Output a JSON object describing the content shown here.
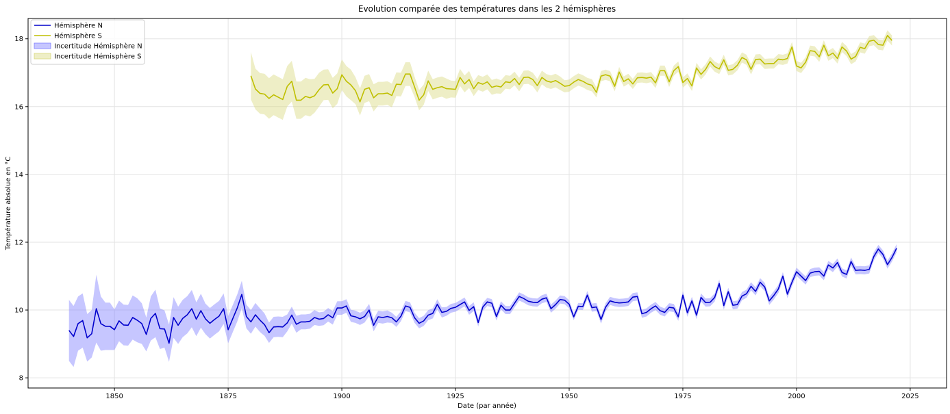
{
  "chart_data": {
    "type": "line",
    "title": "Evolution comparée des températures dans les 2 hémisphères",
    "xlabel": "Date (par année)",
    "ylabel": "Température absolue en °C",
    "xlim": [
      1831,
      2033
    ],
    "ylim": [
      7.7,
      18.6
    ],
    "xticks": [
      1850,
      1875,
      1900,
      1925,
      1950,
      1975,
      2000,
      2025
    ],
    "yticks": [
      8,
      10,
      12,
      14,
      16,
      18
    ],
    "grid": true,
    "legend_position": "top-left",
    "colors": {
      "north": "#0000cc",
      "north_band": "#8080ff",
      "south": "#bfbf00",
      "south_band": "#dada80"
    },
    "legend": [
      {
        "label": "Hémisphère N",
        "kind": "line",
        "series": "north"
      },
      {
        "label": "Hémisphère S",
        "kind": "line",
        "series": "south"
      },
      {
        "label": "Incertitude Hémisphère N",
        "kind": "band",
        "series": "north"
      },
      {
        "label": "Incertitude Hémisphère S",
        "kind": "band",
        "series": "south"
      }
    ],
    "series": [
      {
        "name": "Hémisphère N",
        "key": "north",
        "start_year": 1840,
        "values": [
          9.4,
          9.22,
          9.6,
          9.69,
          9.18,
          9.3,
          10.04,
          9.6,
          9.52,
          9.52,
          9.42,
          9.68,
          9.56,
          9.55,
          9.78,
          9.7,
          9.6,
          9.28,
          9.75,
          9.9,
          9.45,
          9.44,
          9.02,
          9.78,
          9.55,
          9.75,
          9.86,
          10.04,
          9.73,
          9.98,
          9.74,
          9.61,
          9.72,
          9.82,
          10.04,
          9.42,
          9.74,
          10.06,
          10.46,
          9.81,
          9.65,
          9.86,
          9.7,
          9.57,
          9.33,
          9.5,
          9.51,
          9.5,
          9.62,
          9.85,
          9.58,
          9.65,
          9.65,
          9.67,
          9.78,
          9.73,
          9.75,
          9.86,
          9.77,
          10.06,
          10.06,
          10.12,
          9.83,
          9.8,
          9.74,
          9.81,
          10.0,
          9.55,
          9.8,
          9.78,
          9.81,
          9.77,
          9.65,
          9.82,
          10.12,
          10.08,
          9.77,
          9.61,
          9.68,
          9.85,
          9.9,
          10.17,
          9.93,
          9.96,
          10.05,
          10.08,
          10.16,
          10.24,
          9.99,
          10.1,
          9.63,
          10.09,
          10.24,
          10.2,
          9.81,
          10.14,
          10.0,
          10.0,
          10.2,
          10.4,
          10.34,
          10.26,
          10.23,
          10.22,
          10.32,
          10.36,
          10.04,
          10.16,
          10.31,
          10.29,
          10.17,
          9.8,
          10.11,
          10.1,
          10.44,
          10.07,
          10.09,
          9.72,
          10.08,
          10.27,
          10.23,
          10.21,
          10.22,
          10.24,
          10.38,
          10.4,
          9.89,
          9.93,
          10.04,
          10.12,
          9.98,
          9.93,
          10.08,
          10.06,
          9.8,
          10.44,
          9.92,
          10.27,
          9.85,
          10.37,
          10.22,
          10.23,
          10.37,
          10.78,
          10.13,
          10.54,
          10.14,
          10.16,
          10.41,
          10.48,
          10.7,
          10.55,
          10.82,
          10.68,
          10.27,
          10.43,
          10.62,
          11.0,
          10.47,
          10.82,
          11.13,
          11.0,
          10.87,
          11.09,
          11.13,
          11.14,
          11.0,
          11.33,
          11.24,
          11.4,
          11.11,
          11.05,
          11.43,
          11.17,
          11.18,
          11.17,
          11.2,
          11.58,
          11.8,
          11.64,
          11.34,
          11.55,
          11.82
        ]
      },
      {
        "name": "Incertitude Hémisphère N",
        "key": "north_band",
        "start_year": 1840,
        "margins": [
          0.9,
          0.9,
          0.8,
          0.8,
          0.7,
          0.7,
          1.0,
          0.8,
          0.7,
          0.7,
          0.6,
          0.6,
          0.6,
          0.6,
          0.65,
          0.65,
          0.6,
          0.5,
          0.65,
          0.7,
          0.6,
          0.55,
          0.55,
          0.6,
          0.55,
          0.55,
          0.55,
          0.55,
          0.5,
          0.5,
          0.45,
          0.45,
          0.45,
          0.45,
          0.45,
          0.4,
          0.4,
          0.4,
          0.4,
          0.35,
          0.35,
          0.35,
          0.35,
          0.33,
          0.3,
          0.3,
          0.3,
          0.3,
          0.25,
          0.25,
          0.25,
          0.22,
          0.22,
          0.22,
          0.22,
          0.2,
          0.2,
          0.2,
          0.2,
          0.2,
          0.2,
          0.2,
          0.18,
          0.18,
          0.18,
          0.18,
          0.18,
          0.18,
          0.18,
          0.18,
          0.18,
          0.15,
          0.15,
          0.15,
          0.15,
          0.15,
          0.15,
          0.15,
          0.15,
          0.15,
          0.15,
          0.15,
          0.15,
          0.13,
          0.13,
          0.13,
          0.13,
          0.13,
          0.13,
          0.13,
          0.12,
          0.12,
          0.12,
          0.12,
          0.12,
          0.12,
          0.12,
          0.12,
          0.12,
          0.12,
          0.12,
          0.12,
          0.12,
          0.12,
          0.12,
          0.12,
          0.12,
          0.12,
          0.12,
          0.12,
          0.12,
          0.1,
          0.1,
          0.1,
          0.12,
          0.12,
          0.12,
          0.12,
          0.12,
          0.12,
          0.12,
          0.12,
          0.12,
          0.12,
          0.12,
          0.12,
          0.12,
          0.12,
          0.12,
          0.12,
          0.12,
          0.12,
          0.12,
          0.12,
          0.12,
          0.12,
          0.12,
          0.12,
          0.12,
          0.12,
          0.12,
          0.12,
          0.12,
          0.12,
          0.12,
          0.12,
          0.12,
          0.12,
          0.12,
          0.12,
          0.12,
          0.12,
          0.12,
          0.12,
          0.12,
          0.12,
          0.12,
          0.12,
          0.12,
          0.12,
          0.12,
          0.12,
          0.12,
          0.12,
          0.12,
          0.12,
          0.12,
          0.12,
          0.12,
          0.12,
          0.12,
          0.12,
          0.12,
          0.12,
          0.12,
          0.12,
          0.12,
          0.12,
          0.12,
          0.12,
          0.12,
          0.12,
          0.12,
          0.12,
          0.12,
          0.15,
          0.15
        ]
      },
      {
        "name": "Hémisphère S",
        "key": "south",
        "start_year": 1880,
        "values": [
          16.91,
          16.52,
          16.39,
          16.37,
          16.24,
          16.35,
          16.28,
          16.21,
          16.6,
          16.75,
          16.19,
          16.19,
          16.3,
          16.26,
          16.32,
          16.5,
          16.64,
          16.65,
          16.4,
          16.53,
          16.94,
          16.75,
          16.64,
          16.47,
          16.14,
          16.51,
          16.56,
          16.26,
          16.38,
          16.38,
          16.4,
          16.33,
          16.66,
          16.65,
          16.96,
          16.96,
          16.58,
          16.19,
          16.35,
          16.76,
          16.51,
          16.56,
          16.59,
          16.53,
          16.52,
          16.51,
          16.86,
          16.67,
          16.8,
          16.53,
          16.71,
          16.66,
          16.73,
          16.57,
          16.61,
          16.58,
          16.73,
          16.71,
          16.83,
          16.65,
          16.86,
          16.87,
          16.8,
          16.62,
          16.86,
          16.76,
          16.72,
          16.77,
          16.69,
          16.6,
          16.62,
          16.72,
          16.8,
          16.75,
          16.67,
          16.63,
          16.42,
          16.9,
          16.94,
          16.9,
          16.6,
          17.02,
          16.74,
          16.82,
          16.67,
          16.85,
          16.86,
          16.84,
          16.87,
          16.7,
          17.06,
          17.06,
          16.73,
          17.06,
          17.18,
          16.71,
          16.83,
          16.61,
          17.14,
          16.95,
          17.1,
          17.33,
          17.18,
          17.11,
          17.38,
          17.07,
          17.1,
          17.22,
          17.45,
          17.38,
          17.1,
          17.39,
          17.4,
          17.26,
          17.27,
          17.27,
          17.4,
          17.38,
          17.42,
          17.76,
          17.2,
          17.14,
          17.31,
          17.65,
          17.63,
          17.47,
          17.81,
          17.5,
          17.58,
          17.42,
          17.76,
          17.64,
          17.4,
          17.48,
          17.75,
          17.71,
          17.93,
          17.96,
          17.83,
          17.81,
          18.1,
          17.95
        ]
      },
      {
        "name": "Incertitude Hémisphère S",
        "key": "south_band",
        "start_year": 1880,
        "margins": [
          0.7,
          0.6,
          0.6,
          0.6,
          0.6,
          0.6,
          0.6,
          0.6,
          0.6,
          0.6,
          0.55,
          0.55,
          0.55,
          0.55,
          0.5,
          0.5,
          0.45,
          0.45,
          0.45,
          0.45,
          0.45,
          0.45,
          0.45,
          0.4,
          0.4,
          0.4,
          0.4,
          0.4,
          0.35,
          0.35,
          0.35,
          0.35,
          0.35,
          0.35,
          0.35,
          0.35,
          0.3,
          0.3,
          0.3,
          0.3,
          0.3,
          0.3,
          0.3,
          0.3,
          0.25,
          0.25,
          0.25,
          0.25,
          0.25,
          0.22,
          0.22,
          0.22,
          0.22,
          0.22,
          0.22,
          0.2,
          0.2,
          0.2,
          0.2,
          0.2,
          0.2,
          0.2,
          0.2,
          0.2,
          0.2,
          0.2,
          0.2,
          0.2,
          0.2,
          0.18,
          0.18,
          0.18,
          0.18,
          0.18,
          0.18,
          0.18,
          0.15,
          0.15,
          0.15,
          0.15,
          0.15,
          0.15,
          0.15,
          0.15,
          0.15,
          0.15,
          0.15,
          0.15,
          0.15,
          0.15,
          0.15,
          0.15,
          0.15,
          0.15,
          0.15,
          0.15,
          0.15,
          0.15,
          0.15,
          0.15,
          0.15,
          0.15,
          0.15,
          0.15,
          0.15,
          0.15,
          0.15,
          0.15,
          0.15,
          0.15,
          0.15,
          0.15,
          0.15,
          0.15,
          0.15,
          0.15,
          0.15,
          0.15,
          0.15,
          0.15,
          0.15,
          0.15,
          0.15,
          0.15,
          0.15,
          0.15,
          0.15,
          0.15,
          0.15,
          0.15,
          0.15,
          0.15,
          0.15,
          0.15,
          0.15,
          0.15,
          0.15,
          0.15,
          0.15,
          0.15,
          0.15
        ]
      }
    ]
  }
}
